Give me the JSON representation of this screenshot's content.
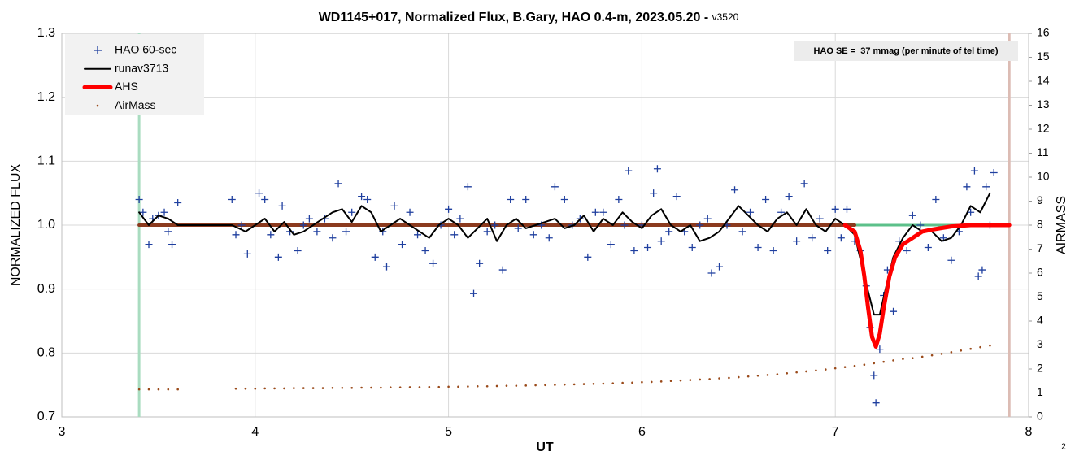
{
  "chart_data": {
    "type": "combo",
    "title": "WD1145+017, Normalized Flux, B.Gary, HAO 0.4-m, 2023.05.20 - ",
    "title_version": "v3520",
    "x_label": "UT",
    "y_label": "NORMALIZED FLUX",
    "y2_label": "AIRMASS",
    "annotation": "HAO SE =  37 mmag (per minute of tel time)",
    "footnote": "2",
    "xlim": [
      3,
      8
    ],
    "xticks": [
      3,
      4,
      5,
      6,
      7,
      8
    ],
    "ylim": [
      0.7,
      1.3
    ],
    "yticks": [
      0.7,
      0.8,
      0.9,
      {
        "value": 1,
        "label": "1.0"
      },
      1.1,
      1.2,
      1.3
    ],
    "y2lim": [
      0,
      16
    ],
    "y2ticks": [
      0,
      1,
      2,
      3,
      4,
      5,
      6,
      7,
      8,
      9,
      10,
      11,
      12,
      13,
      14,
      15,
      16
    ],
    "grid": true,
    "legend": "top-left",
    "reference_lines": [
      {
        "x": 3.4,
        "color": "#a9dcc0"
      },
      {
        "x": 7.9,
        "color": "#dcbcb4"
      }
    ],
    "series": [
      {
        "name": "HAO 60-sec",
        "type": "scatter",
        "color": "#1f3f9f",
        "x": [
          3.4,
          3.42,
          3.45,
          3.47,
          3.5,
          3.53,
          3.55,
          3.57,
          3.6,
          3.88,
          3.9,
          3.93,
          3.96,
          4.02,
          4.05,
          4.08,
          4.12,
          4.14,
          4.18,
          4.22,
          4.25,
          4.28,
          4.32,
          4.36,
          4.4,
          4.43,
          4.47,
          4.5,
          4.55,
          4.58,
          4.62,
          4.66,
          4.68,
          4.72,
          4.76,
          4.8,
          4.84,
          4.88,
          4.92,
          4.96,
          5.0,
          5.03,
          5.06,
          5.1,
          5.13,
          5.16,
          5.2,
          5.24,
          5.28,
          5.32,
          5.36,
          5.4,
          5.44,
          5.48,
          5.52,
          5.55,
          5.6,
          5.64,
          5.68,
          5.72,
          5.76,
          5.8,
          5.84,
          5.88,
          5.91,
          5.93,
          5.96,
          6.0,
          6.03,
          6.06,
          6.08,
          6.1,
          6.14,
          6.18,
          6.22,
          6.26,
          6.3,
          6.34,
          6.36,
          6.4,
          6.44,
          6.48,
          6.52,
          6.56,
          6.6,
          6.64,
          6.68,
          6.72,
          6.76,
          6.8,
          6.84,
          6.88,
          6.92,
          6.96,
          7.0,
          7.03,
          7.06,
          7.1,
          7.13,
          7.16,
          7.18,
          7.2,
          7.21,
          7.23,
          7.25,
          7.27,
          7.3,
          7.33,
          7.37,
          7.4,
          7.44,
          7.48,
          7.52,
          7.56,
          7.6,
          7.64,
          7.68,
          7.7,
          7.72,
          7.74,
          7.76,
          7.78,
          7.8,
          7.82
        ],
        "values": [
          1.04,
          1.02,
          0.97,
          1.01,
          1.015,
          1.02,
          0.99,
          0.97,
          1.035,
          1.04,
          0.985,
          1.0,
          0.955,
          1.05,
          1.04,
          0.985,
          0.95,
          1.03,
          0.99,
          0.96,
          1.0,
          1.01,
          0.99,
          1.01,
          0.98,
          1.065,
          0.99,
          1.02,
          1.045,
          1.04,
          0.95,
          0.99,
          0.935,
          1.03,
          0.97,
          1.02,
          0.985,
          0.96,
          0.94,
          1.0,
          1.025,
          0.985,
          1.01,
          1.06,
          0.893,
          0.94,
          0.99,
          1.0,
          0.93,
          1.04,
          0.995,
          1.04,
          0.985,
          1.0,
          0.98,
          1.06,
          1.04,
          1.0,
          1.01,
          0.95,
          1.02,
          1.02,
          0.97,
          1.04,
          1.0,
          1.085,
          0.96,
          1.0,
          0.965,
          1.05,
          1.088,
          0.975,
          0.99,
          1.045,
          0.99,
          0.965,
          1.0,
          1.01,
          0.925,
          0.935,
          1.0,
          1.055,
          0.99,
          1.02,
          0.965,
          1.04,
          0.96,
          1.02,
          1.045,
          0.975,
          1.065,
          0.98,
          1.01,
          0.96,
          1.025,
          0.98,
          1.025,
          0.975,
          0.96,
          0.905,
          0.84,
          0.765,
          0.722,
          0.806,
          0.89,
          0.93,
          0.865,
          0.975,
          0.96,
          1.015,
          1.0,
          0.965,
          1.04,
          0.98,
          0.945,
          0.99,
          1.06,
          1.02,
          1.085,
          0.92,
          0.93,
          1.06,
          1.0,
          1.082
        ]
      },
      {
        "name": "runav3713",
        "type": "line",
        "color": "#000000",
        "linewidth": 2,
        "x": [
          3.4,
          3.45,
          3.5,
          3.55,
          3.6,
          3.88,
          3.95,
          4.0,
          4.05,
          4.1,
          4.15,
          4.2,
          4.25,
          4.3,
          4.35,
          4.4,
          4.45,
          4.5,
          4.55,
          4.6,
          4.65,
          4.7,
          4.75,
          4.8,
          4.85,
          4.9,
          4.95,
          5.0,
          5.05,
          5.1,
          5.15,
          5.2,
          5.25,
          5.3,
          5.35,
          5.4,
          5.45,
          5.5,
          5.55,
          5.6,
          5.65,
          5.7,
          5.75,
          5.8,
          5.85,
          5.9,
          5.95,
          6.0,
          6.05,
          6.1,
          6.15,
          6.2,
          6.25,
          6.3,
          6.35,
          6.4,
          6.45,
          6.5,
          6.55,
          6.6,
          6.65,
          6.7,
          6.75,
          6.8,
          6.85,
          6.9,
          6.95,
          7.0,
          7.05,
          7.1,
          7.15,
          7.2,
          7.23,
          7.26,
          7.3,
          7.35,
          7.4,
          7.45,
          7.5,
          7.55,
          7.6,
          7.65,
          7.7,
          7.75,
          7.8
        ],
        "values": [
          1.02,
          1.0,
          1.015,
          1.01,
          1.0,
          1.0,
          0.99,
          1.0,
          1.01,
          0.99,
          1.005,
          0.985,
          0.99,
          1.0,
          1.01,
          1.02,
          1.025,
          1.005,
          1.03,
          1.02,
          0.99,
          1.0,
          1.01,
          1.0,
          0.99,
          0.98,
          1.0,
          1.01,
          1.0,
          0.98,
          0.995,
          1.01,
          0.975,
          1.0,
          1.01,
          0.995,
          1.0,
          1.005,
          1.01,
          0.995,
          1.0,
          1.015,
          0.99,
          1.01,
          1.0,
          1.02,
          1.005,
          0.995,
          1.015,
          1.025,
          1.0,
          0.99,
          1.0,
          0.975,
          0.98,
          0.99,
          1.01,
          1.03,
          1.015,
          1.0,
          0.99,
          1.01,
          1.02,
          1.0,
          1.025,
          1.0,
          0.99,
          1.01,
          1.0,
          0.985,
          0.92,
          0.86,
          0.86,
          0.9,
          0.95,
          0.98,
          1.0,
          0.99,
          0.99,
          0.975,
          0.98,
          1.0,
          1.03,
          1.02,
          1.05
        ]
      },
      {
        "name": "AHS",
        "type": "line",
        "color": "#ff0000",
        "linewidth": 5,
        "x": [
          7.05,
          7.1,
          7.13,
          7.15,
          7.17,
          7.19,
          7.21,
          7.23,
          7.25,
          7.28,
          7.31,
          7.35,
          7.4,
          7.45,
          7.5,
          7.6,
          7.7,
          7.8,
          7.9
        ],
        "values": [
          1.0,
          0.99,
          0.96,
          0.92,
          0.87,
          0.825,
          0.81,
          0.83,
          0.87,
          0.92,
          0.95,
          0.97,
          0.98,
          0.99,
          0.993,
          0.998,
          1.0,
          1.0,
          1.0
        ]
      },
      {
        "name": "AirMass",
        "type": "dots",
        "axis": "y2",
        "color": "#9a4a1a",
        "x": [
          3.4,
          3.45,
          3.5,
          3.55,
          3.6,
          3.9,
          3.95,
          4.0,
          4.05,
          4.1,
          4.15,
          4.2,
          4.25,
          4.3,
          4.35,
          4.4,
          4.45,
          4.5,
          4.55,
          4.6,
          4.65,
          4.7,
          4.75,
          4.8,
          4.85,
          4.9,
          4.95,
          5.0,
          5.05,
          5.1,
          5.15,
          5.2,
          5.25,
          5.3,
          5.35,
          5.4,
          5.45,
          5.5,
          5.55,
          5.6,
          5.65,
          5.7,
          5.75,
          5.8,
          5.85,
          5.9,
          5.95,
          6.0,
          6.05,
          6.1,
          6.15,
          6.2,
          6.25,
          6.3,
          6.35,
          6.4,
          6.45,
          6.5,
          6.55,
          6.6,
          6.65,
          6.7,
          6.75,
          6.8,
          6.85,
          6.9,
          6.95,
          7.0,
          7.05,
          7.1,
          7.15,
          7.2,
          7.25,
          7.3,
          7.35,
          7.4,
          7.45,
          7.5,
          7.55,
          7.6,
          7.65,
          7.7,
          7.75,
          7.8
        ],
        "values": [
          1.15,
          1.15,
          1.15,
          1.15,
          1.15,
          1.18,
          1.18,
          1.18,
          1.19,
          1.19,
          1.19,
          1.2,
          1.2,
          1.2,
          1.2,
          1.21,
          1.21,
          1.21,
          1.22,
          1.22,
          1.22,
          1.23,
          1.23,
          1.24,
          1.24,
          1.25,
          1.25,
          1.26,
          1.26,
          1.27,
          1.28,
          1.28,
          1.29,
          1.3,
          1.3,
          1.31,
          1.32,
          1.33,
          1.34,
          1.35,
          1.36,
          1.37,
          1.38,
          1.39,
          1.4,
          1.42,
          1.43,
          1.45,
          1.46,
          1.48,
          1.5,
          1.52,
          1.54,
          1.56,
          1.58,
          1.61,
          1.63,
          1.66,
          1.69,
          1.72,
          1.75,
          1.78,
          1.82,
          1.86,
          1.9,
          1.94,
          1.98,
          2.03,
          2.08,
          2.13,
          2.18,
          2.24,
          2.3,
          2.36,
          2.42,
          2.45,
          2.51,
          2.57,
          2.63,
          2.7,
          2.77,
          2.84,
          2.91,
          2.98
        ]
      },
      {
        "type": "line",
        "color": "#5cc08a",
        "linewidth": 3,
        "x": [
          3.4,
          7.9
        ],
        "values": [
          1.0,
          1.0
        ]
      },
      {
        "type": "line",
        "color": "#8b3a1e",
        "linewidth": 4,
        "x": [
          3.4,
          7.1
        ],
        "values": [
          1.0,
          1.0
        ]
      }
    ]
  }
}
